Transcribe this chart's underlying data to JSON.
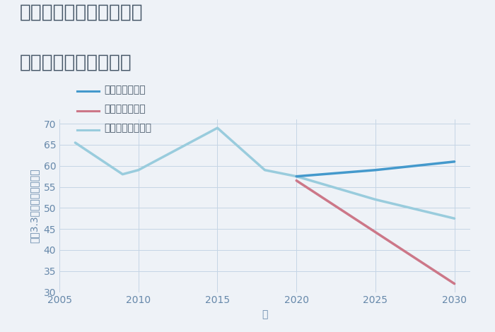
{
  "title_line1": "三重県鈴鹿市東庄内町の",
  "title_line2": "中古戸建ての価格推移",
  "xlabel": "年",
  "ylabel": "坪（3.3㎡）単価（万円）",
  "background_color": "#eef2f7",
  "plot_background": "#eef2f7",
  "good_scenario": {
    "x": [
      2020,
      2025,
      2030
    ],
    "y": [
      57.5,
      59.0,
      61.0
    ],
    "color": "#4499cc",
    "label": "グッドシナリオ",
    "linewidth": 2.5
  },
  "bad_scenario": {
    "x": [
      2020,
      2030
    ],
    "y": [
      56.5,
      32.0
    ],
    "color": "#cc7788",
    "label": "バッドシナリオ",
    "linewidth": 2.5
  },
  "normal_scenario": {
    "x": [
      2006,
      2009,
      2010,
      2013,
      2015,
      2018,
      2020,
      2025,
      2030
    ],
    "y": [
      65.5,
      58.0,
      59.0,
      65.0,
      69.0,
      59.0,
      57.5,
      52.0,
      47.5
    ],
    "color": "#99ccdd",
    "label": "ノーマルシナリオ",
    "linewidth": 2.5
  },
  "xlim": [
    2005,
    2031
  ],
  "ylim": [
    30,
    71
  ],
  "yticks": [
    30,
    35,
    40,
    45,
    50,
    55,
    60,
    65,
    70
  ],
  "xticks": [
    2005,
    2010,
    2015,
    2020,
    2025,
    2030
  ],
  "grid_color": "#c5d5e5",
  "title_fontsize": 19,
  "axis_label_fontsize": 10,
  "legend_fontsize": 10,
  "tick_fontsize": 10,
  "text_color": "#445566",
  "tick_color": "#6688aa"
}
